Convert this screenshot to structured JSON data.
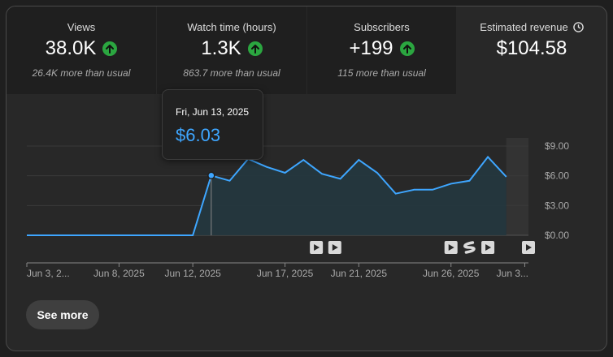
{
  "stats": [
    {
      "label": "Views",
      "value": "38.0K",
      "sub": "26.4K more than usual",
      "trend": "up"
    },
    {
      "label": "Watch time (hours)",
      "value": "1.3K",
      "sub": "863.7 more than usual",
      "trend": "up"
    },
    {
      "label": "Subscribers",
      "value": "+199",
      "sub": "115 more than usual",
      "trend": "up"
    },
    {
      "label": "Estimated revenue",
      "value": "$104.58",
      "sub": "",
      "icon": "clock-icon"
    }
  ],
  "tooltip": {
    "date": "Fri, Jun 13, 2025",
    "value": "$6.03"
  },
  "see_more": "See more",
  "chart_data": {
    "type": "area",
    "ylim": [
      0,
      9
    ],
    "y_ticks": [
      "$9.00",
      "$6.00",
      "$3.00",
      "$0.00"
    ],
    "x_ticks": [
      "Jun 3, 2...",
      "Jun 8, 2025",
      "Jun 12, 2025",
      "Jun 17, 2025",
      "Jun 21, 2025",
      "Jun 26, 2025",
      "Jun 3..."
    ],
    "x_tick_days": [
      3,
      8,
      12,
      17,
      21,
      26,
      30
    ],
    "x": [
      3,
      4,
      5,
      6,
      7,
      8,
      9,
      10,
      11,
      12,
      13,
      14,
      15,
      16,
      17,
      18,
      19,
      20,
      21,
      22,
      23,
      24,
      25,
      26,
      27,
      28,
      29
    ],
    "x_unit": "June 2025 (day)",
    "values": [
      0,
      0,
      0,
      0,
      0,
      0,
      0,
      0,
      0,
      0,
      6.03,
      5.5,
      7.7,
      6.9,
      6.3,
      7.6,
      6.2,
      5.7,
      7.6,
      6.3,
      4.2,
      4.6,
      4.6,
      5.2,
      5.5,
      7.9,
      5.9
    ],
    "highlight_day": 13,
    "color": "#3ea6ff",
    "video_markers": [
      {
        "day": 18.7,
        "icon": "play-icon"
      },
      {
        "day": 19.7,
        "icon": "play-icon"
      },
      {
        "day": 26.0,
        "icon": "play-icon"
      },
      {
        "day": 27.0,
        "icon": "shorts-icon"
      },
      {
        "day": 28.0,
        "icon": "play-icon"
      },
      {
        "day": 30.2,
        "icon": "play-icon"
      }
    ]
  }
}
